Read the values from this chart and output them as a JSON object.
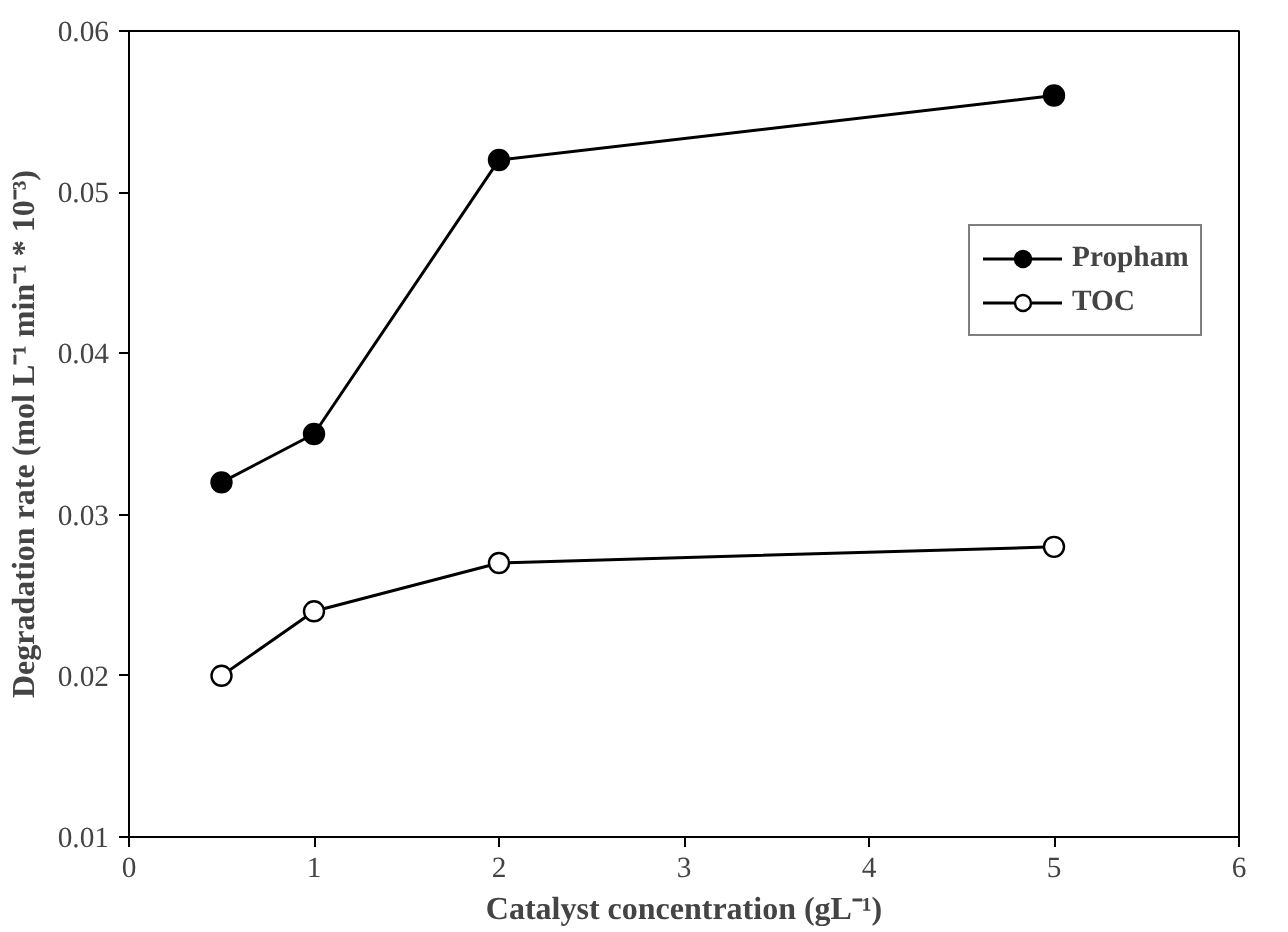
{
  "chart_data": {
    "type": "line",
    "xlabel": "Catalyst concentration (gL⁻¹)",
    "ylabel": "Degradation rate (mol L⁻¹ min⁻¹ * 10⁻³)",
    "x": [
      0.5,
      1,
      2,
      5
    ],
    "series": [
      {
        "name": "Propham",
        "color": "#000000",
        "marker": "circle",
        "values": [
          0.032,
          0.035,
          0.052,
          0.056
        ]
      },
      {
        "name": "TOC",
        "color": "#000000",
        "marker": "circle_open",
        "values": [
          0.02,
          0.024,
          0.027,
          0.028
        ]
      }
    ],
    "xlim": [
      0,
      6
    ],
    "xticks": [
      0,
      1,
      2,
      3,
      4,
      5,
      6
    ],
    "ylim": [
      0.01,
      0.06
    ],
    "yticks": [
      {
        "value": 0.01,
        "label": "0.01"
      },
      {
        "value": 0.02,
        "label": "0.02"
      },
      {
        "value": 0.03,
        "label": "0.03"
      },
      {
        "value": 0.04,
        "label": "0.04"
      },
      {
        "value": 0.05,
        "label": "0.05"
      },
      {
        "value": 0.06,
        "label": "0.06"
      }
    ],
    "grid": false,
    "legend": "right",
    "line_style": "solid"
  }
}
